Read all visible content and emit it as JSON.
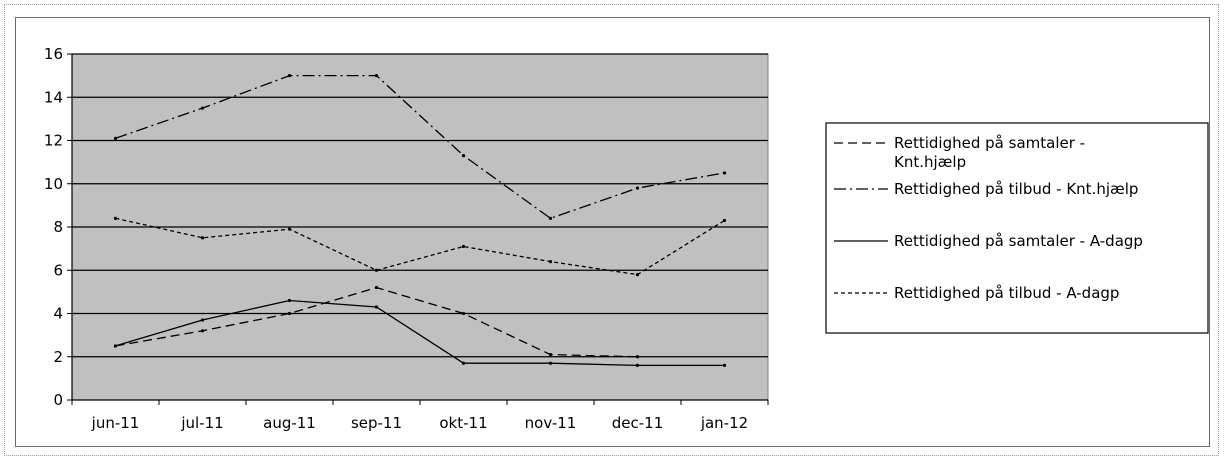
{
  "chart_data": {
    "type": "line",
    "categories": [
      "jun-11",
      "jul-11",
      "aug-11",
      "sep-11",
      "okt-11",
      "nov-11",
      "dec-11",
      "jan-12"
    ],
    "ylim": [
      0,
      16
    ],
    "yticks": [
      0,
      2,
      4,
      6,
      8,
      10,
      12,
      14,
      16
    ],
    "grid": true,
    "legend_position": "right",
    "plot_background": "#c0c0c0",
    "series": [
      {
        "name": "Rettidighed på samtaler - Knt.hjælp",
        "style": "dashed",
        "values": [
          2.5,
          3.2,
          4.0,
          5.2,
          4.0,
          2.1,
          2.0,
          null
        ]
      },
      {
        "name": "Rettidighed på tilbud - Knt.hjælp",
        "style": "dashdot",
        "values": [
          12.1,
          13.5,
          15.0,
          15.0,
          11.3,
          8.4,
          9.8,
          10.5
        ]
      },
      {
        "name": "Rettidighed på samtaler - A-dagp",
        "style": "solid",
        "values": [
          2.5,
          3.7,
          4.6,
          4.3,
          1.7,
          1.7,
          1.6,
          1.6
        ]
      },
      {
        "name": "Rettidighed på tilbud - A-dagp",
        "style": "dotted",
        "values": [
          8.4,
          7.5,
          7.9,
          6.0,
          7.1,
          6.4,
          5.8,
          8.3
        ]
      }
    ]
  }
}
